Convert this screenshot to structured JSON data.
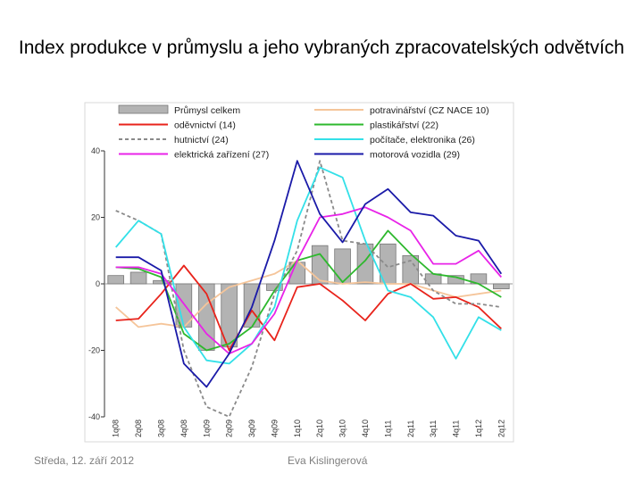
{
  "slide": {
    "title": "Index produkce v průmyslu a jeho vybraných zpracovatelských odvětvích",
    "footer_date": "Středa, 12. září 2012",
    "footer_author": "Eva Kislingerová"
  },
  "chart_data": {
    "type": "bar",
    "title": "",
    "xlabel": "",
    "ylabel": "",
    "ylim": [
      -40,
      40
    ],
    "yticks": [
      40,
      20,
      0,
      -20,
      -40
    ],
    "grid": false,
    "legend_position": "top",
    "categories": [
      "1q08",
      "2q08",
      "3q08",
      "4q08",
      "1q09",
      "2q09",
      "3q09",
      "4q09",
      "1q10",
      "2q10",
      "3q10",
      "4q10",
      "1q11",
      "2q11",
      "3q11",
      "4q11",
      "1q12",
      "2q12"
    ],
    "bar_series": {
      "name": "Průmysl celkem",
      "color": "#b3b3b3",
      "values": [
        2.5,
        3.5,
        1,
        -13,
        -20,
        -19,
        -13,
        -2,
        6.5,
        11.5,
        10.5,
        12,
        12,
        8.5,
        3,
        2.5,
        3,
        -1.5
      ]
    },
    "series": [
      {
        "name": "potravinářství (CZ NACE 10)",
        "color": "#f5c59a",
        "dashed": false,
        "values": [
          -7,
          -13,
          -12,
          -13,
          -6,
          -1,
          1,
          3,
          7,
          1,
          0,
          0.5,
          0,
          0,
          -2,
          -4,
          -3,
          -2
        ]
      },
      {
        "name": "oděvnictví (14)",
        "color": "#e8231b",
        "dashed": false,
        "values": [
          -11,
          -10.5,
          -3,
          5.5,
          -3,
          -20,
          -8,
          -17,
          -1,
          0,
          -5,
          -11,
          -3,
          0,
          -4.5,
          -4,
          -7,
          -13.5
        ]
      },
      {
        "name": "plastikářství (22)",
        "color": "#2eb82e",
        "dashed": false,
        "values": [
          5,
          4.5,
          2,
          -15,
          -20,
          -18,
          -13,
          -2,
          7,
          9,
          0.5,
          7,
          16,
          9,
          3,
          2,
          0,
          -4
        ]
      },
      {
        "name": "hutnictví (24)",
        "color": "#8a8a8a",
        "dashed": true,
        "values": [
          22,
          19,
          15,
          -20,
          -37,
          -40,
          -25,
          -3,
          10,
          37,
          13,
          12,
          5,
          7,
          -2,
          -6,
          -6,
          -7
        ]
      },
      {
        "name": "počítače, elektronika (26)",
        "color": "#33e0e8",
        "dashed": false,
        "values": [
          11,
          19,
          15,
          -13,
          -23,
          -24,
          -18,
          -7,
          19,
          35,
          32,
          13,
          -2,
          -4,
          -10,
          -22.5,
          -10,
          -14
        ]
      },
      {
        "name": "elektrická zařízení (27)",
        "color": "#e823e8",
        "dashed": false,
        "values": [
          5,
          5,
          3,
          -6,
          -15,
          -21,
          -18,
          -9,
          7,
          20,
          21,
          23,
          20,
          16,
          6,
          6,
          10,
          2
        ]
      },
      {
        "name": "motorová vozidla (29)",
        "color": "#1a1aa8",
        "dashed": false,
        "values": [
          8,
          8,
          4,
          -24,
          -31,
          -21,
          -7,
          13,
          37,
          21,
          12.5,
          24,
          28.5,
          21.5,
          20.5,
          14.5,
          13,
          3
        ]
      }
    ]
  }
}
